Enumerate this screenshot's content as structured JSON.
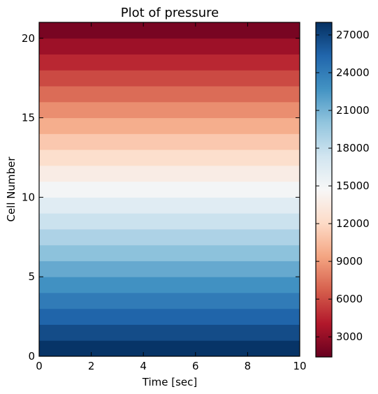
{
  "chart_data": {
    "type": "heatmap",
    "title": "Plot of pressure",
    "xlabel": "Time [sec]",
    "ylabel": "Cell Number",
    "xlim": [
      0,
      10
    ],
    "ylim": [
      0,
      21
    ],
    "x_ticks": [
      "0",
      "2",
      "4",
      "6",
      "8",
      "10"
    ],
    "y_ticks": [
      "0",
      "5",
      "10",
      "15",
      "20"
    ],
    "colormap": "RdBu",
    "colorbar": {
      "range": [
        1400,
        28000
      ],
      "ticks": [
        "3000",
        "6000",
        "9000",
        "12000",
        "15000",
        "18000",
        "21000",
        "24000",
        "27000"
      ]
    },
    "cells": [
      0,
      1,
      2,
      3,
      4,
      5,
      6,
      7,
      8,
      9,
      10,
      11,
      12,
      13,
      14,
      15,
      16,
      17,
      18,
      19,
      20
    ],
    "values": [
      27800,
      26600,
      25400,
      24100,
      22800,
      21500,
      20200,
      18900,
      17600,
      16300,
      15000,
      13700,
      12400,
      11100,
      9800,
      8500,
      7200,
      5900,
      4600,
      3300,
      2000
    ]
  }
}
